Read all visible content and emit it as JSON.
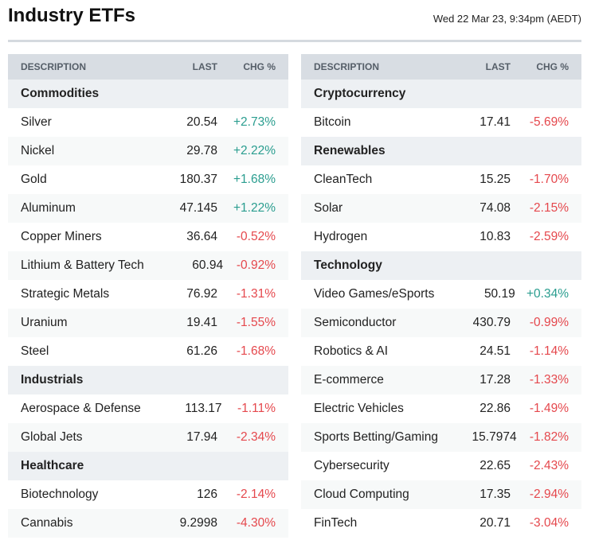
{
  "title": "Industry ETFs",
  "timestamp": "Wed 22 Mar 23, 9:34pm (AEDT)",
  "colors": {
    "positive": "#2a9d8f",
    "negative": "#e5484d",
    "header_bg": "#d8dde3",
    "category_bg": "#edf0f3"
  },
  "columns": {
    "description": "DESCRIPTION",
    "last": "LAST",
    "chg": "CHG %"
  },
  "tables": [
    {
      "groups": [
        {
          "name": "Commodities",
          "rows": [
            [
              "Silver",
              "20.54",
              "+2.73%"
            ],
            [
              "Nickel",
              "29.78",
              "+2.22%"
            ],
            [
              "Gold",
              "180.37",
              "+1.68%"
            ],
            [
              "Aluminum",
              "47.145",
              "+1.22%"
            ],
            [
              "Copper Miners",
              "36.64",
              "-0.52%"
            ],
            [
              "Lithium & Battery Tech",
              "60.94",
              "-0.92%"
            ],
            [
              "Strategic Metals",
              "76.92",
              "-1.31%"
            ],
            [
              "Uranium",
              "19.41",
              "-1.55%"
            ],
            [
              "Steel",
              "61.26",
              "-1.68%"
            ]
          ]
        },
        {
          "name": "Industrials",
          "rows": [
            [
              "Aerospace & Defense",
              "113.17",
              "-1.11%"
            ],
            [
              "Global Jets",
              "17.94",
              "-2.34%"
            ]
          ]
        },
        {
          "name": "Healthcare",
          "rows": [
            [
              "Biotechnology",
              "126",
              "-2.14%"
            ],
            [
              "Cannabis",
              "9.2998",
              "-4.30%"
            ]
          ]
        }
      ]
    },
    {
      "groups": [
        {
          "name": "Cryptocurrency",
          "rows": [
            [
              "Bitcoin",
              "17.41",
              "-5.69%"
            ]
          ]
        },
        {
          "name": "Renewables",
          "rows": [
            [
              "CleanTech",
              "15.25",
              "-1.70%"
            ],
            [
              "Solar",
              "74.08",
              "-2.15%"
            ],
            [
              "Hydrogen",
              "10.83",
              "-2.59%"
            ]
          ]
        },
        {
          "name": "Technology",
          "rows": [
            [
              "Video Games/eSports",
              "50.19",
              "+0.34%"
            ],
            [
              "Semiconductor",
              "430.79",
              "-0.99%"
            ],
            [
              "Robotics & AI",
              "24.51",
              "-1.14%"
            ],
            [
              "E-commerce",
              "17.28",
              "-1.33%"
            ],
            [
              "Electric Vehicles",
              "22.86",
              "-1.49%"
            ],
            [
              "Sports Betting/Gaming",
              "15.7974",
              "-1.82%"
            ],
            [
              "Cybersecurity",
              "22.65",
              "-2.43%"
            ],
            [
              "Cloud Computing",
              "17.35",
              "-2.94%"
            ],
            [
              "FinTech",
              "20.71",
              "-3.04%"
            ]
          ]
        }
      ]
    }
  ]
}
